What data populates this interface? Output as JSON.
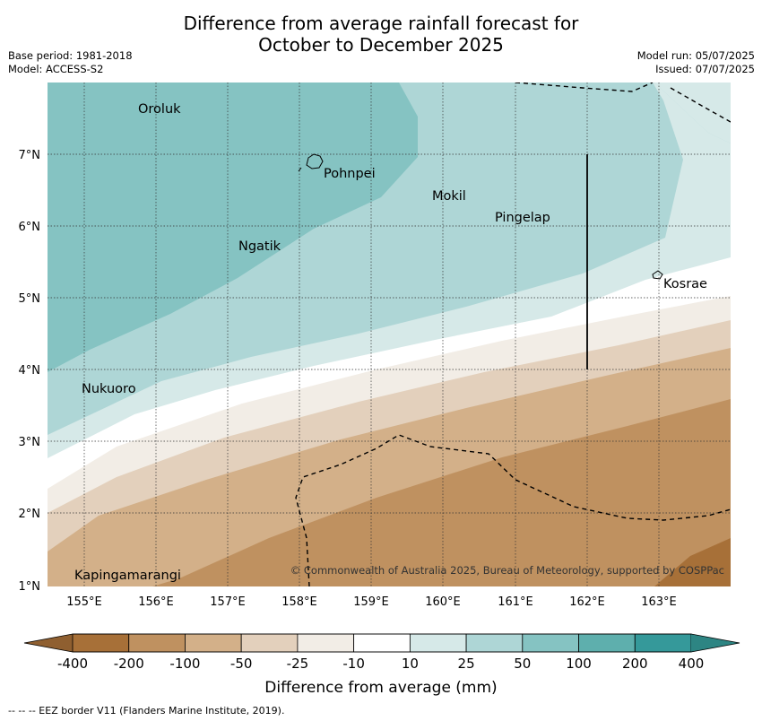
{
  "title_line1": "Difference from average rainfall forecast for",
  "title_line2": "October to December 2025",
  "meta_left": {
    "base_period": "Base period: 1981-2018",
    "model": "Model: ACCESS-S2"
  },
  "meta_right": {
    "model_run": "Model run: 05/07/2025",
    "issued": "Issued: 07/07/2025"
  },
  "axes": {
    "lon_labels": [
      "155°E",
      "156°E",
      "157°E",
      "158°E",
      "159°E",
      "160°E",
      "161°E",
      "162°E",
      "163°E"
    ],
    "lat_labels": [
      "7°N",
      "6°N",
      "5°N",
      "4°N",
      "3°N",
      "2°N",
      "1°N"
    ]
  },
  "places": {
    "oroluk": "Oroluk",
    "pohnpei": "Pohnpei",
    "mokil": "Mokil",
    "pingelap": "Pingelap",
    "ngatik": "Ngatik",
    "kosrae": "Kosrae",
    "nukuoro": "Nukuoro",
    "kapingamarangi": "Kapingamarangi"
  },
  "copyright": "© Commonwealth of Australia 2025, Bureau of Meteorology, supported by COSPPac",
  "colorbar": {
    "ticks": [
      "-400",
      "-200",
      "-100",
      "-50",
      "-25",
      "-10",
      "10",
      "25",
      "50",
      "100",
      "200",
      "400"
    ],
    "colors": [
      "#a77038",
      "#bf9160",
      "#d3b089",
      "#e3d0bc",
      "#f2ede6",
      "#ffffff",
      "#d6e9e8",
      "#aed6d6",
      "#85c3c2",
      "#5eafad",
      "#35999a"
    ],
    "extend_low_color": "#8f5f30",
    "extend_high_color": "#2d8583",
    "title": "Difference from average (mm)"
  },
  "footnote": "--  --  -- EEZ border V11 (Flanders Marine Institute, 2019)."
}
